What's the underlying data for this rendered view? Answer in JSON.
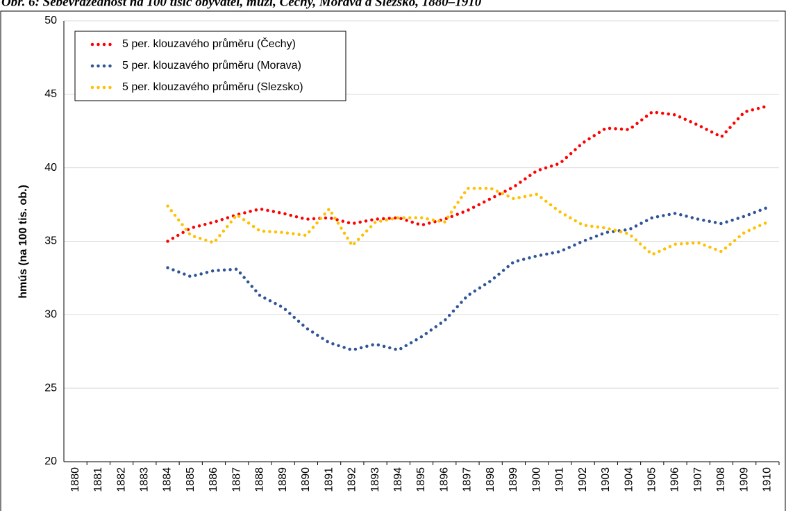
{
  "chart_data": {
    "type": "line",
    "title": "Obr. 6: Sebevražednost na 100 tisíc obyvatel, muži, Čechy, Morava a Slezsko, 1880–1910",
    "y_label": "hmús (na 100 tis. ob.)",
    "categories": [
      "1880",
      "1881",
      "1882",
      "1883",
      "1884",
      "1885",
      "1886",
      "1887",
      "1888",
      "1889",
      "1890",
      "1891",
      "1892",
      "1893",
      "1894",
      "1895",
      "1896",
      "1897",
      "1898",
      "1899",
      "1900",
      "1901",
      "1902",
      "1903",
      "1904",
      "1905",
      "1906",
      "1907",
      "1908",
      "1909",
      "1910"
    ],
    "series": [
      {
        "name": "5 per. klouzavého průměru (Čechy)",
        "color": "#ff0000",
        "values": [
          null,
          null,
          null,
          null,
          35.0,
          35.9,
          36.3,
          36.8,
          37.2,
          36.9,
          36.5,
          36.6,
          36.2,
          36.5,
          36.6,
          36.1,
          36.5,
          37.1,
          37.9,
          38.7,
          39.8,
          40.3,
          41.7,
          42.7,
          42.6,
          43.8,
          43.6,
          42.9,
          42.1,
          43.8,
          44.2
        ]
      },
      {
        "name": "5 per. klouzavého průměru (Morava)",
        "color": "#2f5597",
        "values": [
          null,
          null,
          null,
          null,
          33.2,
          32.6,
          33.0,
          33.1,
          31.3,
          30.5,
          29.1,
          28.1,
          27.6,
          28.0,
          27.6,
          28.5,
          29.6,
          31.3,
          32.3,
          33.6,
          34.0,
          34.3,
          35.0,
          35.6,
          35.8,
          36.6,
          36.9,
          36.5,
          36.2,
          36.7,
          37.3
        ]
      },
      {
        "name": "5 per. klouzavého průměru (Slezsko)",
        "color": "#ffc000",
        "values": [
          null,
          null,
          null,
          null,
          37.4,
          35.4,
          34.9,
          36.8,
          35.7,
          35.6,
          35.4,
          37.2,
          34.7,
          36.3,
          36.6,
          36.6,
          36.3,
          38.6,
          38.6,
          37.9,
          38.2,
          37.0,
          36.1,
          35.9,
          35.5,
          34.1,
          34.8,
          34.9,
          34.3,
          35.6,
          36.3
        ]
      }
    ],
    "ylim": [
      20,
      50
    ],
    "yticks": [
      20,
      25,
      30,
      35,
      40,
      45,
      50
    ],
    "grid": true,
    "legend": "upper left"
  }
}
